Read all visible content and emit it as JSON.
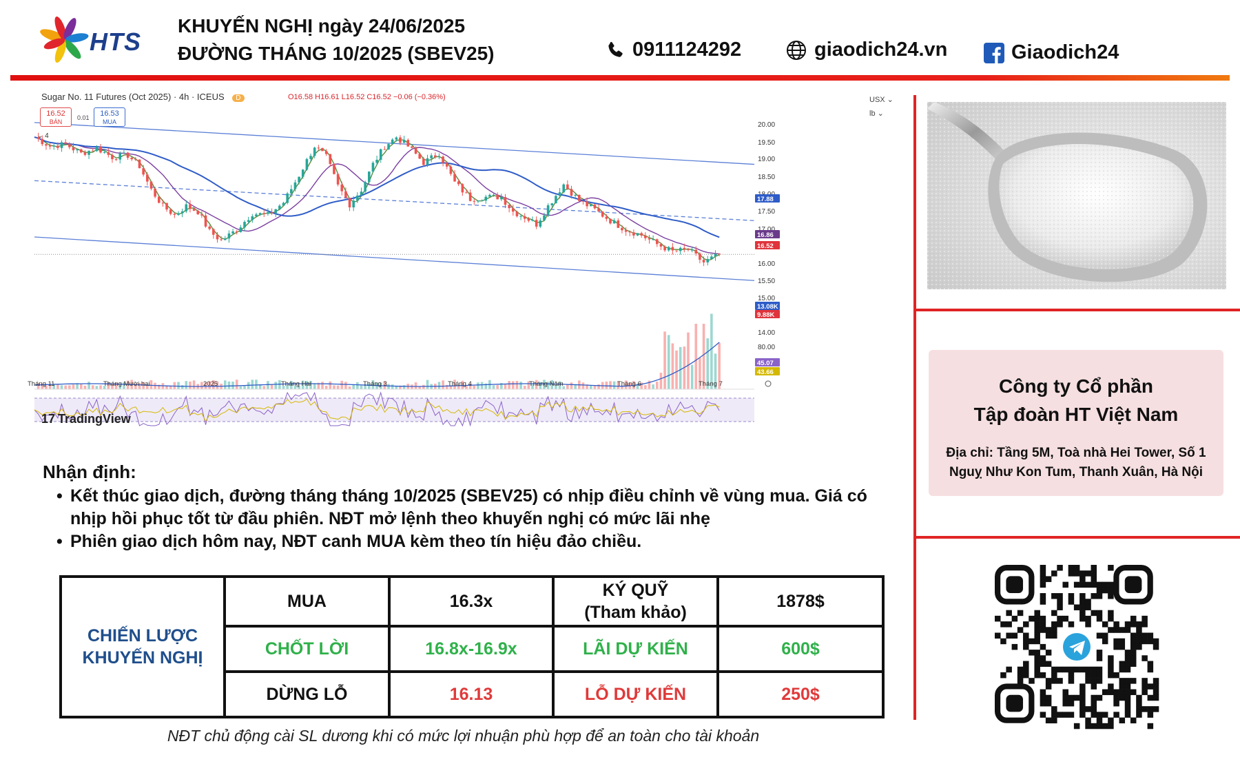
{
  "header": {
    "logo_text": "HTS",
    "title_line1": "KHUYẾN NGHỊ ngày 24/06/2025",
    "title_line2": "ĐƯỜNG THÁNG 10/2025 (SBEV25)",
    "phone": "0911124292",
    "website": "giaodich24.vn",
    "facebook": "Giaodich24",
    "colors": {
      "brand_blue": "#1d3f8c",
      "accent_red": "#e02424"
    }
  },
  "chart_data": {
    "type": "candlestick",
    "title": "Sugar No. 11 Futures (Oct 2025) · 4h · ICEUS",
    "badge": "D",
    "ohlc_text": "O16.58 H16.61 L16.52 C16.52 −0.06 (−0.36%)",
    "sell_box": {
      "price": "16.52",
      "label": "BÁN"
    },
    "buy_box": {
      "price": "16.53",
      "label": "MUA"
    },
    "spread": "0.01",
    "indicator_toggle": "4",
    "currency": "USX",
    "unit": "lb",
    "watermark": "TradingView",
    "y_axis": {
      "ticks": [
        "20.00",
        "19.50",
        "19.00",
        "18.50",
        "18.00",
        "17.50",
        "17.00",
        "16.00",
        "15.50",
        "15.00",
        "14.00",
        "80.00"
      ],
      "ylim": [
        13.8,
        20.3
      ]
    },
    "x_axis": {
      "ticks": [
        "Tháng 11",
        "Tháng Mười hai",
        "2025",
        "Tháng Hai",
        "Tháng 3",
        "Tháng 4",
        "Tháng Năm",
        "Tháng 6",
        "Tháng 7"
      ]
    },
    "price_path": {
      "x": [
        0,
        4,
        8,
        12,
        16,
        20,
        24,
        27,
        30,
        33,
        36,
        39,
        42,
        45,
        48,
        52,
        56,
        60,
        64,
        68,
        72,
        75,
        78,
        81,
        84,
        87,
        90,
        93,
        96,
        100,
        104,
        108,
        112,
        116,
        120,
        123,
        126,
        129,
        132,
        136,
        140,
        144,
        148,
        152,
        156,
        160,
        164,
        168,
        172,
        176
      ],
      "close": [
        19.75,
        19.5,
        19.55,
        19.3,
        19.45,
        19.2,
        19.25,
        18.95,
        18.3,
        17.85,
        17.6,
        17.85,
        17.7,
        17.15,
        16.9,
        17.2,
        17.65,
        17.6,
        17.95,
        18.7,
        19.5,
        19.2,
        18.4,
        17.9,
        18.3,
        19.0,
        19.5,
        19.75,
        19.5,
        19.05,
        19.3,
        18.5,
        18.05,
        18.1,
        18.1,
        17.7,
        17.55,
        17.35,
        17.85,
        18.45,
        18.0,
        17.75,
        17.45,
        17.2,
        17.05,
        16.8,
        16.6,
        16.65,
        16.3,
        16.52
      ]
    },
    "series": [
      {
        "name": "",
        "color": "#5b8a3a",
        "periods": 3
      },
      {
        "name": "",
        "color": "#7b3fa0",
        "periods": 12
      },
      {
        "name": "",
        "color": "#2e5cc8",
        "periods": 36
      }
    ],
    "channel": {
      "upper": [
        {
          "x": 0,
          "y": 20.15
        },
        {
          "x": 185,
          "y": 19.0
        }
      ],
      "middle": [
        {
          "x": 0,
          "y": 18.55
        },
        {
          "x": 185,
          "y": 17.45
        }
      ],
      "lower": [
        {
          "x": 0,
          "y": 17.0
        },
        {
          "x": 185,
          "y": 15.8
        }
      ],
      "hline": 16.52
    },
    "price_labels": [
      {
        "value": "17.88",
        "color": "#2e5cc8"
      },
      {
        "value": "16.86",
        "color": "#6a3a8a"
      },
      {
        "value": "16.52",
        "color": "#e0333b"
      },
      {
        "value": "13.08K",
        "color": "#2e5cc8"
      },
      {
        "value": "9.88K",
        "color": "#e0333b"
      },
      {
        "value": "45.07",
        "color": "#8a63c8"
      },
      {
        "value": "43.66",
        "color": "#d4b800"
      }
    ]
  },
  "analysis": {
    "title": "Nhận định:",
    "bullets": [
      "Kết thúc giao dịch, đường tháng tháng 10/2025 (SBEV25) có nhịp điều chỉnh về vùng mua. Giá có nhịp hồi phục tốt từ đầu phiên. NĐT mở lệnh theo khuyến nghị có mức lãi nhẹ",
      "Phiên giao dịch hôm nay, NĐT canh MUA kèm theo tín hiệu đảo chiều."
    ]
  },
  "strategy": {
    "title_line1": "CHIẾN LƯỢC",
    "title_line2": "KHUYẾN NGHỊ",
    "rows": [
      [
        "MUA",
        "16.3x",
        "KÝ QUỸ",
        "(Tham khảo)",
        "1878$"
      ],
      [
        "CHỐT LỜI",
        "16.8x-16.9x",
        "LÃI DỰ KIẾN",
        "600$"
      ],
      [
        "DỪNG LỖ",
        "16.13",
        "LỖ DỰ KIẾN",
        "250$"
      ]
    ]
  },
  "footnote": "NĐT chủ động cài SL dương khi có mức lợi nhuận phù hợp để an toàn cho tài khoản",
  "company": {
    "name_line1": "Công ty Cổ phần",
    "name_line2": "Tập đoàn HT Việt Nam",
    "address_line1": "Địa chỉ: Tầng 5M, Toà nhà Hei Tower, Số 1",
    "address_line2": "Nguỵ Như Kon Tum, Thanh Xuân, Hà Nội"
  },
  "qr": {
    "center_icon": "telegram-icon"
  }
}
